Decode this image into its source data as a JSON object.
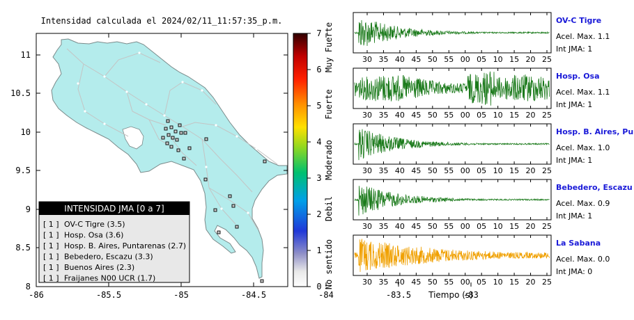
{
  "map": {
    "title": "Intensidad calculada el 2024/02/11_11:57:35_p.m.",
    "x_ticks": [
      "-86",
      "-85.5",
      "-85",
      "-84.5",
      "-84",
      "-83.5",
      "-83"
    ],
    "y_ticks": [
      "11",
      "10.5",
      "10",
      "9.5",
      "9",
      "8.5",
      "8"
    ],
    "colorbar": {
      "ticks": [
        "0",
        "1",
        "2",
        "3",
        "4",
        "5",
        "6",
        "7"
      ],
      "labels": [
        "No sentido",
        "Debil",
        "Moderado",
        "Fuerte",
        "Muy Fuerte"
      ]
    },
    "legend": {
      "title": "INTENSIDAD JMA [0 a 7]",
      "items": [
        {
          "badge": "[ 1 ]",
          "name": "OV-C Tigre (3.5)"
        },
        {
          "badge": "[ 1 ]",
          "name": "Hosp. Osa (3.6)"
        },
        {
          "badge": "[ 1 ]",
          "name": "Hosp. B. Aires, Puntarenas (2.7)"
        },
        {
          "badge": "[ 1 ]",
          "name": "Bebedero, Escazu (3.3)"
        },
        {
          "badge": "[ 1 ]",
          "name": "Buenos Aires (2.3)"
        },
        {
          "badge": "[ 1 ]",
          "name": "Fraijanes N00 UCR (1.7)"
        }
      ]
    }
  },
  "chart_data": [
    {
      "type": "line",
      "title": "OV-C Tigre",
      "xlabel": "",
      "x_ticks": [
        "30",
        "35",
        "40",
        "45",
        "50",
        "55",
        "00",
        "05",
        "10",
        "15",
        "20",
        "25"
      ],
      "accel_label": "Acel. Max. 1.1",
      "int_label": "Int JMA: 1",
      "color": "#1b7a1b",
      "shape": "decay"
    },
    {
      "type": "line",
      "title": "Hosp. Osa",
      "xlabel": "",
      "x_ticks": [
        "30",
        "35",
        "40",
        "45",
        "50",
        "55",
        "00",
        "05",
        "10",
        "15",
        "20",
        "25"
      ],
      "accel_label": "Acel. Max. 1.1",
      "int_label": "Int JMA: 1",
      "color": "#1b7a1b",
      "shape": "sustained"
    },
    {
      "type": "line",
      "title": "Hosp. B. Aires, Puntarenas",
      "xlabel": "",
      "x_ticks": [
        "30",
        "35",
        "40",
        "45",
        "50",
        "55",
        "00",
        "05",
        "10",
        "15",
        "20",
        "25"
      ],
      "accel_label": "Acel. Max. 1.0",
      "int_label": "Int JMA: 1",
      "color": "#1b7a1b",
      "shape": "decay"
    },
    {
      "type": "line",
      "title": "Bebedero, Escazu",
      "xlabel": "",
      "x_ticks": [
        "30",
        "35",
        "40",
        "45",
        "50",
        "55",
        "00",
        "05",
        "10",
        "15",
        "20",
        "25"
      ],
      "accel_label": "Acel. Max. 0.9",
      "int_label": "Int JMA: 1",
      "color": "#1b7a1b",
      "shape": "decay"
    },
    {
      "type": "line",
      "title": "La Sabana",
      "xlabel": "Tiempo (s)",
      "x_ticks": [
        "30",
        "35",
        "40",
        "45",
        "50",
        "55",
        "00",
        "05",
        "10",
        "15",
        "20",
        "25"
      ],
      "accel_label": "Acel. Max. 0.0",
      "int_label": "Int JMA: 0",
      "color": "#f0a000",
      "shape": "decay"
    }
  ]
}
